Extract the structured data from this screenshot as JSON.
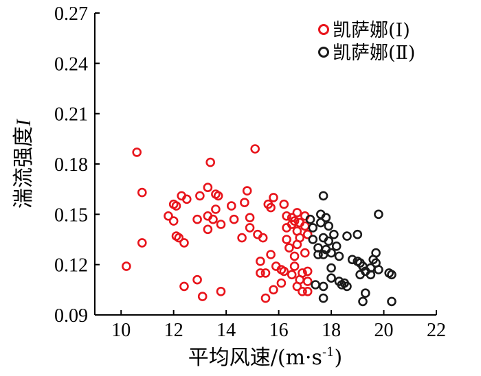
{
  "chart_data": {
    "type": "scatter",
    "xlabel": "平均风速/(m·s-1)",
    "xlabel_parts": {
      "main": "平均风速/(m·s",
      "sup": "-1",
      "close": ")"
    },
    "ylabel": "湍流强度I",
    "ylabel_parts": {
      "main": "湍流强度",
      "italic": "I"
    },
    "xlim": [
      9,
      22
    ],
    "ylim": [
      0.09,
      0.27
    ],
    "xticks": [
      10,
      12,
      14,
      16,
      18,
      20,
      22
    ],
    "yticks": [
      0.09,
      0.12,
      0.15,
      0.18,
      0.21,
      0.24,
      0.27
    ],
    "xtick_labels": [
      "10",
      "12",
      "14",
      "16",
      "18",
      "20",
      "22"
    ],
    "ytick_labels": [
      "0.09",
      "0.12",
      "0.15",
      "0.18",
      "0.21",
      "0.24",
      "0.27"
    ],
    "grid": false,
    "legend_position": "top-right",
    "series": [
      {
        "name": "凯萨娜(Ⅰ)",
        "color": "#e8141b",
        "marker": "open-circle",
        "points": [
          [
            10.2,
            0.119
          ],
          [
            10.6,
            0.187
          ],
          [
            10.8,
            0.163
          ],
          [
            10.8,
            0.133
          ],
          [
            11.8,
            0.149
          ],
          [
            12.0,
            0.146
          ],
          [
            12.0,
            0.156
          ],
          [
            12.1,
            0.155
          ],
          [
            12.1,
            0.137
          ],
          [
            12.2,
            0.136
          ],
          [
            12.3,
            0.161
          ],
          [
            12.4,
            0.133
          ],
          [
            12.4,
            0.107
          ],
          [
            12.5,
            0.159
          ],
          [
            12.9,
            0.147
          ],
          [
            12.9,
            0.111
          ],
          [
            13.0,
            0.161
          ],
          [
            13.1,
            0.101
          ],
          [
            13.3,
            0.149
          ],
          [
            13.3,
            0.166
          ],
          [
            13.3,
            0.141
          ],
          [
            13.4,
            0.181
          ],
          [
            13.5,
            0.147
          ],
          [
            13.6,
            0.162
          ],
          [
            13.6,
            0.153
          ],
          [
            13.7,
            0.161
          ],
          [
            13.8,
            0.104
          ],
          [
            13.8,
            0.144
          ],
          [
            14.2,
            0.155
          ],
          [
            14.3,
            0.147
          ],
          [
            14.6,
            0.136
          ],
          [
            14.7,
            0.157
          ],
          [
            14.8,
            0.164
          ],
          [
            14.9,
            0.148
          ],
          [
            14.9,
            0.142
          ],
          [
            15.1,
            0.189
          ],
          [
            15.2,
            0.138
          ],
          [
            15.3,
            0.122
          ],
          [
            15.3,
            0.115
          ],
          [
            15.4,
            0.136
          ],
          [
            15.5,
            0.115
          ],
          [
            15.5,
            0.1
          ],
          [
            15.6,
            0.156
          ],
          [
            15.7,
            0.154
          ],
          [
            15.7,
            0.126
          ],
          [
            15.8,
            0.105
          ],
          [
            15.8,
            0.16
          ],
          [
            15.9,
            0.119
          ],
          [
            16.1,
            0.117
          ],
          [
            16.1,
            0.109
          ],
          [
            16.2,
            0.156
          ],
          [
            16.2,
            0.116
          ],
          [
            16.3,
            0.149
          ],
          [
            16.3,
            0.142
          ],
          [
            16.3,
            0.135
          ],
          [
            16.4,
            0.13
          ],
          [
            16.5,
            0.148
          ],
          [
            16.5,
            0.144
          ],
          [
            16.5,
            0.114
          ],
          [
            16.6,
            0.146
          ],
          [
            16.6,
            0.125
          ],
          [
            16.6,
            0.119
          ],
          [
            16.7,
            0.151
          ],
          [
            16.7,
            0.14
          ],
          [
            16.7,
            0.132
          ],
          [
            16.7,
            0.107
          ],
          [
            16.8,
            0.145
          ],
          [
            16.8,
            0.136
          ],
          [
            16.8,
            0.111
          ],
          [
            16.9,
            0.115
          ],
          [
            16.9,
            0.104
          ],
          [
            17.0,
            0.149
          ],
          [
            17.0,
            0.143
          ],
          [
            17.0,
            0.127
          ],
          [
            17.1,
            0.138
          ],
          [
            17.1,
            0.116
          ],
          [
            17.1,
            0.11
          ],
          [
            17.1,
            0.104
          ]
        ]
      },
      {
        "name": "凯萨娜(Ⅱ)",
        "color": "#1a1a1a",
        "marker": "open-circle",
        "points": [
          [
            17.2,
            0.147
          ],
          [
            17.3,
            0.142
          ],
          [
            17.3,
            0.135
          ],
          [
            17.4,
            0.108
          ],
          [
            17.5,
            0.13
          ],
          [
            17.5,
            0.126
          ],
          [
            17.6,
            0.15
          ],
          [
            17.6,
            0.145
          ],
          [
            17.7,
            0.161
          ],
          [
            17.7,
            0.136
          ],
          [
            17.7,
            0.126
          ],
          [
            17.7,
            0.107
          ],
          [
            17.7,
            0.1
          ],
          [
            17.8,
            0.148
          ],
          [
            17.8,
            0.129
          ],
          [
            17.9,
            0.143
          ],
          [
            17.9,
            0.134
          ],
          [
            18.0,
            0.127
          ],
          [
            18.0,
            0.118
          ],
          [
            18.0,
            0.112
          ],
          [
            18.1,
            0.138
          ],
          [
            18.2,
            0.131
          ],
          [
            18.3,
            0.125
          ],
          [
            18.3,
            0.11
          ],
          [
            18.4,
            0.108
          ],
          [
            18.5,
            0.109
          ],
          [
            18.6,
            0.107
          ],
          [
            18.6,
            0.137
          ],
          [
            18.8,
            0.123
          ],
          [
            19.0,
            0.122
          ],
          [
            19.0,
            0.138
          ],
          [
            19.1,
            0.121
          ],
          [
            19.1,
            0.114
          ],
          [
            19.2,
            0.119
          ],
          [
            19.2,
            0.098
          ],
          [
            19.3,
            0.103
          ],
          [
            19.3,
            0.116
          ],
          [
            19.5,
            0.118
          ],
          [
            19.5,
            0.114
          ],
          [
            19.6,
            0.123
          ],
          [
            19.7,
            0.127
          ],
          [
            19.7,
            0.121
          ],
          [
            19.8,
            0.15
          ],
          [
            19.8,
            0.117
          ],
          [
            20.2,
            0.115
          ],
          [
            20.3,
            0.114
          ],
          [
            20.3,
            0.098
          ]
        ]
      }
    ]
  }
}
